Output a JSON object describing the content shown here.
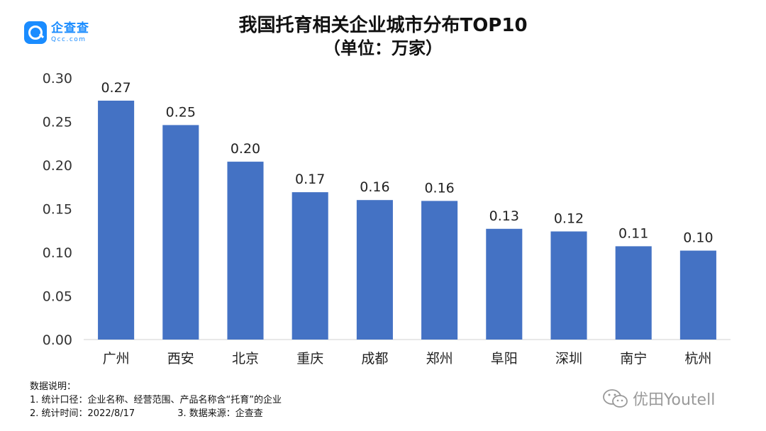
{
  "brand": {
    "name": "企查查",
    "url": "Qcc.com",
    "color": "#1a8cff"
  },
  "chart_data": {
    "type": "bar",
    "title": "我国托育相关企业城市分布TOP10",
    "subtitle": "（单位：万家）",
    "categories": [
      "广州",
      "西安",
      "北京",
      "重庆",
      "成都",
      "郑州",
      "阜阳",
      "深圳",
      "南宁",
      "杭州"
    ],
    "values": [
      0.274,
      0.246,
      0.204,
      0.169,
      0.16,
      0.159,
      0.127,
      0.124,
      0.107,
      0.102
    ],
    "data_labels": [
      "0.27",
      "0.25",
      "0.20",
      "0.17",
      "0.16",
      "0.16",
      "0.13",
      "0.12",
      "0.11",
      "0.10"
    ],
    "yticks": [
      "0.00",
      "0.05",
      "0.10",
      "0.15",
      "0.20",
      "0.25",
      "0.30"
    ],
    "ylim": [
      0,
      0.3
    ],
    "xlabel": "",
    "ylabel": "",
    "grid": false,
    "bar_color": "#4472c4"
  },
  "notes": {
    "heading": "数据说明：",
    "line1": "1. 统计口径：企业名称、经营范围、产品名称含“托育”的企业",
    "line2a": "2. 统计时间：2022/8/17",
    "line2b": "3. 数据来源：企查查"
  },
  "watermark": {
    "text": "优田Youtell",
    "icon": "wechat-icon"
  }
}
